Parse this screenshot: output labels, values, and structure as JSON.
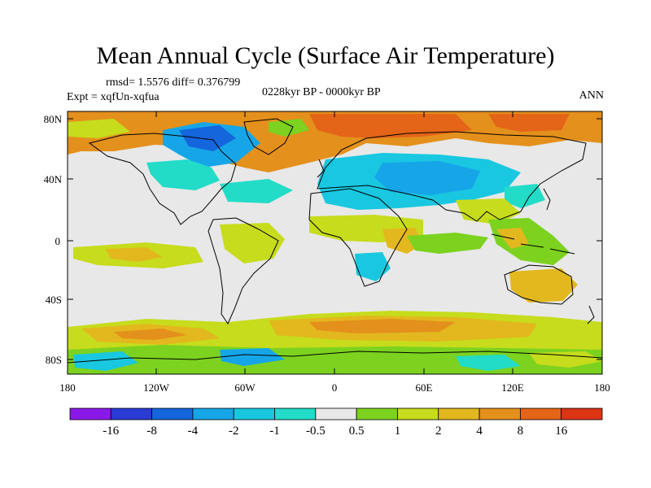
{
  "title": "Mean Annual Cycle (Surface Air Temperature)",
  "stats": "rmsd= 1.5576 diff= 0.376799",
  "expt": "Expt = xqfUn-xqfua",
  "period": "0228kyr BP - 0000kyr BP",
  "season": "ANN",
  "lat_labels": [
    "80N",
    "40N",
    "0",
    "40S",
    "80S"
  ],
  "lon_labels": [
    "180",
    "120W",
    "60W",
    "0",
    "60E",
    "120E",
    "180"
  ],
  "colorbar": {
    "labels": [
      "-16",
      "-8",
      "-4",
      "-2",
      "-1",
      "-0.5",
      "0.5",
      "1",
      "2",
      "4",
      "8",
      "16"
    ],
    "colors": [
      "#8a19e8",
      "#2a3bd6",
      "#1565dd",
      "#16a6e8",
      "#19c8e0",
      "#22dcc8",
      "#e8e8e8",
      "#7cd21f",
      "#c6dc1c",
      "#e2b81e",
      "#e4901c",
      "#e46418",
      "#dc3414"
    ]
  },
  "colors": {
    "neutral": "#e8e8e8",
    "warm_light": "#c6dc1c",
    "warm": "#e2b81e",
    "warm_strong": "#e4901c",
    "hot": "#e46418",
    "cool": "#19c8e0",
    "cool_strong": "#16a6e8",
    "cold": "#1565dd",
    "green": "#7cd21f"
  }
}
